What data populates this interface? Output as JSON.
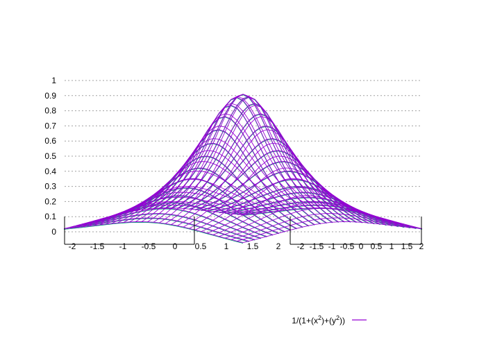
{
  "chart_data": {
    "type": "surface",
    "function": "1/(1+(x^2)+(y^2))",
    "x_range": [
      -2,
      2
    ],
    "y_range": [
      -2,
      2
    ],
    "z_range": [
      0,
      1
    ],
    "grid_samples": 31,
    "x_ticks": [
      "-2",
      "-1.5",
      "-1",
      "-0.5",
      "0",
      "0.5",
      "1",
      "1.5",
      "2"
    ],
    "y_ticks": [
      "-2",
      "-1.5",
      "-1",
      "-0.5",
      "0",
      "0.5",
      "1",
      "1.5",
      "2"
    ],
    "z_ticks": [
      "0",
      "0.1",
      "0.2",
      "0.3",
      "0.4",
      "0.5",
      "0.6",
      "0.7",
      "0.8",
      "0.9",
      "1"
    ],
    "z_grid": true,
    "legend_placement": "bottom-right",
    "series": [
      {
        "legend_prefix": "1/(1+(x",
        "legend_mid": ")+(y",
        "legend_suffix": "))",
        "sup": "2",
        "color": "#9400d3",
        "underside_color": "#009e73"
      }
    ]
  }
}
